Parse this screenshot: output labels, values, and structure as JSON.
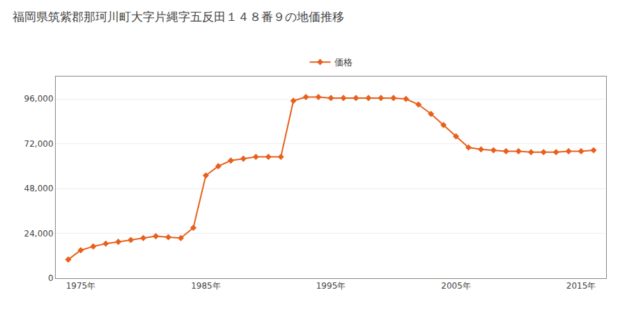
{
  "chart_data": {
    "type": "line",
    "title": "福岡県筑紫郡那珂川町大字片縄字五反田１４８番９の地価推移",
    "x": [
      1974,
      1975,
      1976,
      1977,
      1978,
      1979,
      1980,
      1981,
      1982,
      1983,
      1984,
      1985,
      1986,
      1987,
      1988,
      1989,
      1990,
      1991,
      1992,
      1993,
      1994,
      1995,
      1996,
      1997,
      1998,
      1999,
      2000,
      2001,
      2002,
      2003,
      2004,
      2005,
      2006,
      2007,
      2008,
      2009,
      2010,
      2011,
      2012,
      2013,
      2014,
      2015,
      2016
    ],
    "series": [
      {
        "name": "価格",
        "color": "#e8601c",
        "marker": "diamond",
        "values": [
          10000,
          15000,
          17000,
          18500,
          19500,
          20500,
          21500,
          22500,
          22000,
          21500,
          27000,
          55000,
          60000,
          63000,
          64000,
          65000,
          65000,
          65000,
          95000,
          97000,
          97000,
          96500,
          96500,
          96500,
          96500,
          96500,
          96500,
          96000,
          93000,
          88000,
          82000,
          76000,
          70000,
          69000,
          68500,
          68000,
          68000,
          67500,
          67500,
          67500,
          68000,
          68000,
          68500
        ]
      }
    ],
    "xlim": [
      1973,
      2017
    ],
    "xticks": [
      {
        "value": 1975,
        "label": "1975年"
      },
      {
        "value": 1985,
        "label": "1985年"
      },
      {
        "value": 1995,
        "label": "1995年"
      },
      {
        "value": 2005,
        "label": "2005年"
      },
      {
        "value": 2015,
        "label": "2015年"
      }
    ],
    "ylim": [
      0,
      108000
    ],
    "yticks": [
      0,
      {
        "value": 24000,
        "label": "24,000"
      },
      {
        "value": 48000,
        "label": "48,000"
      },
      {
        "value": 72000,
        "label": "72,000"
      },
      {
        "value": 96000,
        "label": "96,000"
      }
    ],
    "grid": "y",
    "legend": "top"
  }
}
